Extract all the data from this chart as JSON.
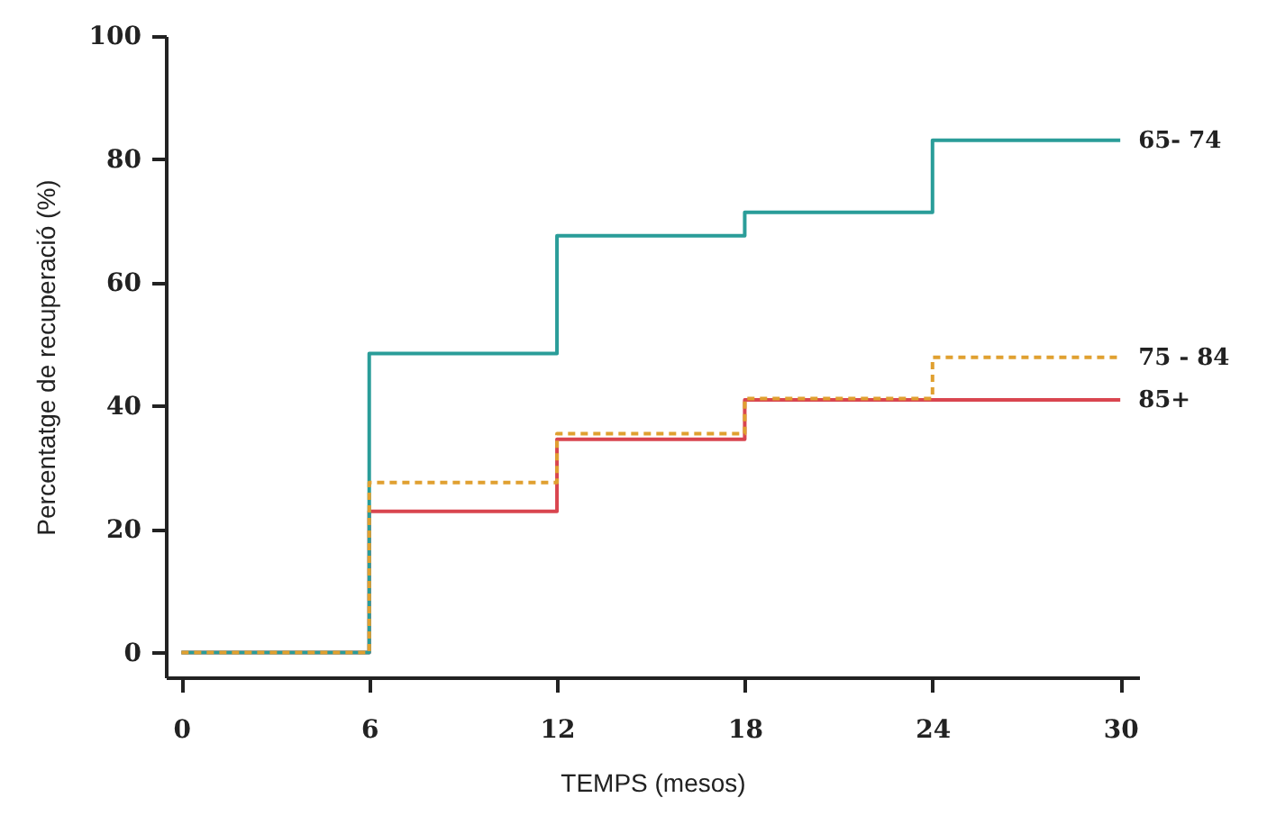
{
  "chart_data": {
    "type": "step",
    "xlabel": "TEMPS (mesos)",
    "ylabel": "Percentatge de recuperació (%)",
    "x": [
      0,
      6,
      12,
      18,
      24,
      30
    ],
    "series": [
      {
        "name": "65- 74",
        "color": "#2a9d99",
        "line_style": "solid",
        "values": [
          0,
          48.5,
          67.6,
          71.4,
          83.1,
          83.1
        ]
      },
      {
        "name": "75 - 84",
        "color": "#e0a030",
        "line_style": "dashed",
        "values": [
          0,
          27.6,
          35.5,
          41.2,
          47.9,
          47.9
        ]
      },
      {
        "name": "85+",
        "color": "#d9454f",
        "line_style": "solid",
        "values": [
          0,
          22.9,
          34.6,
          41,
          41,
          41
        ]
      }
    ],
    "xlim": [
      -0.5,
      30.6
    ],
    "xticks": [
      0,
      6,
      12,
      18,
      24,
      30
    ],
    "ylim": [
      -4,
      100
    ],
    "yticks": [
      0,
      20,
      40,
      60,
      80,
      100
    ],
    "grid": false,
    "legend": false,
    "marker": "none"
  }
}
